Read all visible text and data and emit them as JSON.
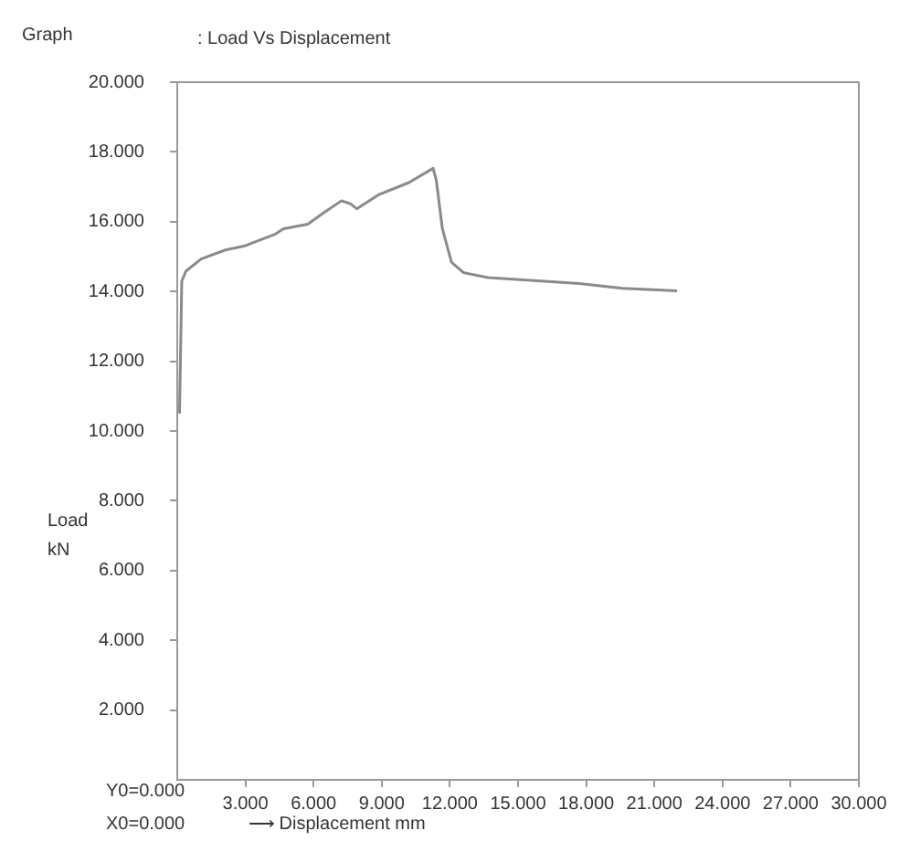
{
  "chart_data": {
    "type": "line",
    "title": "Graph",
    "subtitle": ": Load Vs Displacement",
    "xlabel": "⟶ Displacement mm",
    "ylabel": "Load\nkN",
    "annotations": [
      "Y0=0.000",
      "X0=0.000"
    ],
    "series": [
      {
        "color": "#8a8a8a",
        "x": [
          0.1,
          0.2,
          0.38,
          1.05,
          2.12,
          2.93,
          4.27,
          4.68,
          5.75,
          6.43,
          7.23,
          7.64,
          7.9,
          8.85,
          10.19,
          11.26,
          11.4,
          11.67,
          12.07,
          12.6,
          13.68,
          17.7,
          19.6,
          22.0
        ],
        "values": [
          10.5,
          14.3,
          14.58,
          14.93,
          15.19,
          15.3,
          15.63,
          15.8,
          15.93,
          16.25,
          16.6,
          16.51,
          16.37,
          16.77,
          17.12,
          17.53,
          17.2,
          15.8,
          14.84,
          14.54,
          14.4,
          14.23,
          14.09,
          14.02
        ]
      }
    ],
    "xlim": [
      0,
      30
    ],
    "xticks": [
      {
        "value": 3,
        "label": "3.000"
      },
      {
        "value": 6,
        "label": "6.000"
      },
      {
        "value": 9,
        "label": "9.000"
      },
      {
        "value": 12,
        "label": "12.000"
      },
      {
        "value": 15,
        "label": "15.000"
      },
      {
        "value": 18,
        "label": "18.000"
      },
      {
        "value": 21,
        "label": "21.000"
      },
      {
        "value": 24,
        "label": "24.000"
      },
      {
        "value": 27,
        "label": "27.000"
      },
      {
        "value": 30,
        "label": "30.000"
      }
    ],
    "ylim": [
      0,
      20
    ],
    "yticks": [
      {
        "value": 2,
        "label": "2.000"
      },
      {
        "value": 4,
        "label": "4.000"
      },
      {
        "value": 6,
        "label": "6.000"
      },
      {
        "value": 8,
        "label": "8.000"
      },
      {
        "value": 10,
        "label": "10.000"
      },
      {
        "value": 12,
        "label": "12.000"
      },
      {
        "value": 14,
        "label": "14.000"
      },
      {
        "value": 16,
        "label": "16.000"
      },
      {
        "value": 18,
        "label": "18.000"
      },
      {
        "value": 20,
        "label": "20.000"
      }
    ],
    "grid": false,
    "legend": false,
    "marker": "none",
    "line_style": "solid"
  }
}
